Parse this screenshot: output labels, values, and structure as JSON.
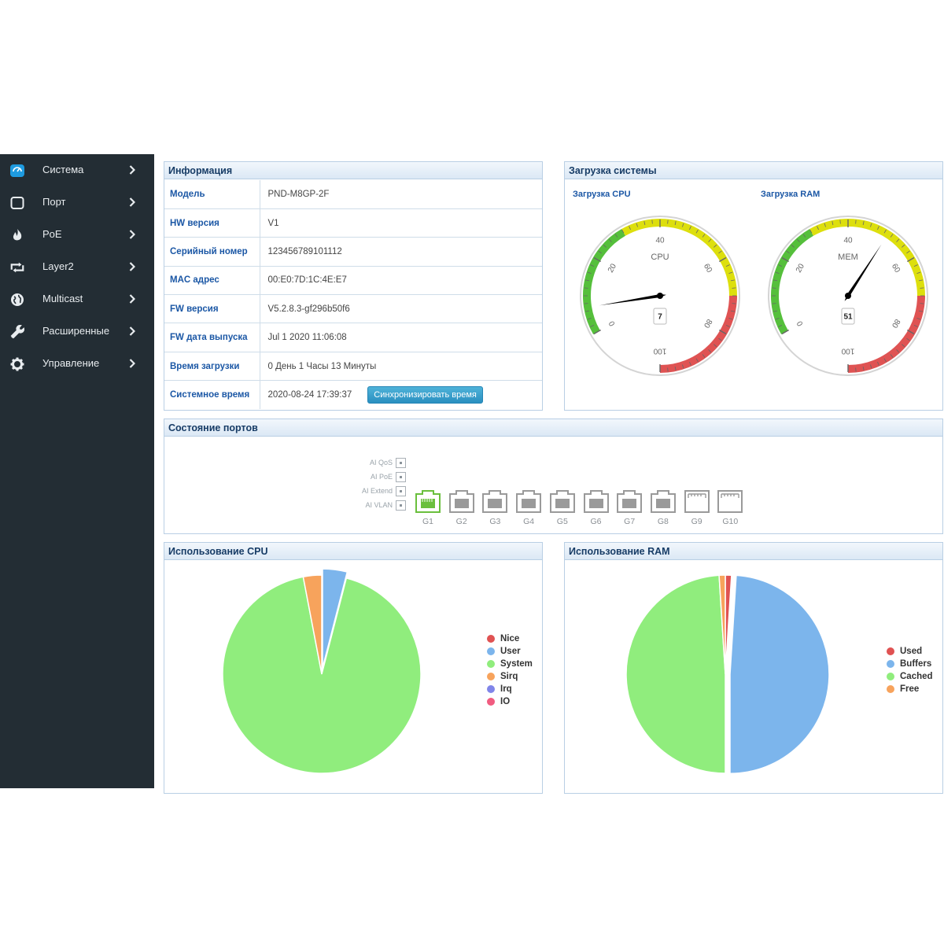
{
  "sidebar": {
    "items": [
      {
        "label": "Система",
        "icon": "dashboard-icon"
      },
      {
        "label": "Порт",
        "icon": "port-icon"
      },
      {
        "label": "PoE",
        "icon": "fire-icon"
      },
      {
        "label": "Layer2",
        "icon": "retweet-icon"
      },
      {
        "label": "Multicast",
        "icon": "globe-icon"
      },
      {
        "label": "Расширенные",
        "icon": "wrench-icon"
      },
      {
        "label": "Управление",
        "icon": "gear-icon"
      }
    ]
  },
  "info": {
    "title": "Информация",
    "rows": [
      {
        "key": "Модель",
        "value": "PND-M8GP-2F"
      },
      {
        "key": "HW версия",
        "value": "V1"
      },
      {
        "key": "Серийный номер",
        "value": "123456789101112"
      },
      {
        "key": "MAC адрес",
        "value": "00:E0:7D:1C:4E:E7"
      },
      {
        "key": "FW версия",
        "value": "V5.2.8.3-gf296b50f6"
      },
      {
        "key": "FW дата выпуска",
        "value": "Jul 1 2020 11:06:08"
      },
      {
        "key": "Время загрузки",
        "value": "0 День 1 Часы 13 Минуты"
      },
      {
        "key": "Системное время",
        "value": "2020-08-24 17:39:37"
      }
    ],
    "sync_button": "Синхронизировать время"
  },
  "load": {
    "title": "Загрузка системы",
    "cpu": {
      "title": "Загрузка CPU",
      "label": "CPU",
      "value": 7
    },
    "ram": {
      "title": "Загрузка RAM",
      "label": "MEM",
      "value": 51
    },
    "ticks": [
      "0",
      "20",
      "40",
      "60",
      "80",
      "100"
    ],
    "min": 0,
    "max": 100
  },
  "ports": {
    "title": "Состояние портов",
    "controls": [
      "AI QoS",
      "AI PoE",
      "AI Extend",
      "AI VLAN"
    ],
    "list": [
      {
        "label": "G1",
        "kind": "rj45",
        "state": "up"
      },
      {
        "label": "G2",
        "kind": "rj45",
        "state": "down"
      },
      {
        "label": "G3",
        "kind": "rj45",
        "state": "down"
      },
      {
        "label": "G4",
        "kind": "rj45",
        "state": "down"
      },
      {
        "label": "G5",
        "kind": "rj45",
        "state": "down"
      },
      {
        "label": "G6",
        "kind": "rj45",
        "state": "down"
      },
      {
        "label": "G7",
        "kind": "rj45",
        "state": "down"
      },
      {
        "label": "G8",
        "kind": "rj45",
        "state": "down"
      },
      {
        "label": "G9",
        "kind": "sfp",
        "state": "down"
      },
      {
        "label": "G10",
        "kind": "sfp",
        "state": "down"
      }
    ]
  },
  "colors": {
    "sidebar_bg": "#232d34",
    "accent_blue": "#1b57a5",
    "port_up": "#6abf3d",
    "port_down": "#9a9a9a"
  },
  "chart_data": [
    {
      "type": "pie",
      "title": "Использование CPU",
      "series": [
        {
          "name": "Nice",
          "value": 0,
          "color": "#e05252"
        },
        {
          "name": "User",
          "value": 4,
          "color": "#7cb5ec"
        },
        {
          "name": "System",
          "value": 93,
          "color": "#90ed7d"
        },
        {
          "name": "Sirq",
          "value": 3,
          "color": "#f7a35c"
        },
        {
          "name": "Irq",
          "value": 0,
          "color": "#8085e9"
        },
        {
          "name": "IO",
          "value": 0,
          "color": "#f15c80"
        }
      ],
      "legend": "right"
    },
    {
      "type": "pie",
      "title": "Использование RAM",
      "series": [
        {
          "name": "Used",
          "value": 1,
          "color": "#e05252"
        },
        {
          "name": "Buffers",
          "value": 49,
          "color": "#7cb5ec"
        },
        {
          "name": "Cached",
          "value": 49,
          "color": "#90ed7d"
        },
        {
          "name": "Free",
          "value": 1,
          "color": "#f7a35c"
        }
      ],
      "legend": "right"
    }
  ]
}
